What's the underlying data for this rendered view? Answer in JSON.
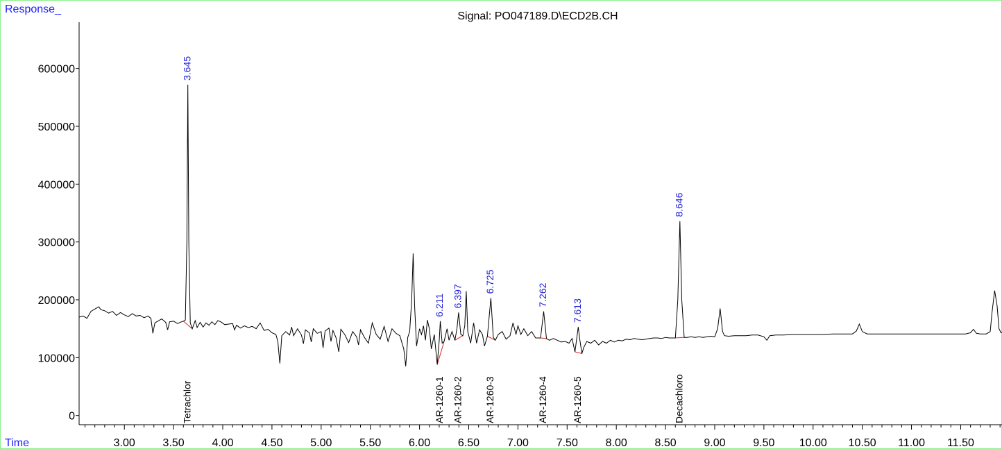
{
  "chart_data": {
    "type": "line",
    "title": "Signal: PO047189.D\\ECD2B.CH",
    "ylabel": "Response_",
    "xlabel": "Time",
    "xlim": [
      2.54,
      11.92
    ],
    "ylim": [
      -16000,
      680000
    ],
    "x_ticks": [
      "3.00",
      "3.50",
      "4.00",
      "4.50",
      "5.00",
      "5.50",
      "6.00",
      "6.50",
      "7.00",
      "7.50",
      "8.00",
      "8.50",
      "9.00",
      "9.50",
      "10.00",
      "10.50",
      "11.00",
      "11.50"
    ],
    "y_ticks": [
      "0",
      "100000",
      "200000",
      "300000",
      "400000",
      "500000",
      "600000"
    ],
    "colors": {
      "trace": "#000000",
      "peak_label": "#2323d9",
      "baseline": "#e02020",
      "axis_title": "#1a1aff",
      "frame": "#8cf08c"
    },
    "peaks": [
      {
        "rt": "3.645",
        "x": 3.645,
        "apex": 572000,
        "compound": "Tetrachlor",
        "bl_start": [
          3.6,
          163000
        ],
        "bl_end": [
          3.69,
          150000
        ]
      },
      {
        "rt": "6.211",
        "x": 6.211,
        "apex": 163000,
        "compound": "AR-1260-1",
        "bl_start": [
          6.18,
          88000
        ],
        "bl_end": [
          6.25,
          128000
        ]
      },
      {
        "rt": "6.397",
        "x": 6.397,
        "apex": 178000,
        "compound": "AR-1260-2",
        "bl_start": [
          6.36,
          130000
        ],
        "bl_end": [
          6.44,
          138000
        ]
      },
      {
        "rt": "6.725",
        "x": 6.725,
        "apex": 203000,
        "compound": "AR-1260-3",
        "bl_start": [
          6.69,
          137000
        ],
        "bl_end": [
          6.77,
          130000
        ]
      },
      {
        "rt": "7.262",
        "x": 7.262,
        "apex": 180000,
        "compound": "AR-1260-4",
        "bl_start": [
          7.23,
          134000
        ],
        "bl_end": [
          7.29,
          133000
        ]
      },
      {
        "rt": "7.613",
        "x": 7.613,
        "apex": 153000,
        "compound": "AR-1260-5",
        "bl_start": [
          7.58,
          110000
        ],
        "bl_end": [
          7.65,
          107000
        ]
      },
      {
        "rt": "8.646",
        "x": 8.646,
        "apex": 336000,
        "compound": "Decachloro",
        "bl_start": [
          8.6,
          134000
        ],
        "bl_end": [
          8.69,
          135000
        ]
      }
    ],
    "trace": [
      [
        2.54,
        170000
      ],
      [
        2.58,
        172000
      ],
      [
        2.62,
        168000
      ],
      [
        2.66,
        180000
      ],
      [
        2.7,
        184000
      ],
      [
        2.72,
        186000
      ],
      [
        2.74,
        188000
      ],
      [
        2.76,
        183000
      ],
      [
        2.8,
        181000
      ],
      [
        2.84,
        177000
      ],
      [
        2.88,
        180000
      ],
      [
        2.92,
        173000
      ],
      [
        2.96,
        178000
      ],
      [
        3.0,
        174000
      ],
      [
        3.04,
        171000
      ],
      [
        3.08,
        176000
      ],
      [
        3.12,
        172000
      ],
      [
        3.16,
        173000
      ],
      [
        3.2,
        169000
      ],
      [
        3.24,
        172000
      ],
      [
        3.27,
        168000
      ],
      [
        3.29,
        142000
      ],
      [
        3.31,
        160000
      ],
      [
        3.34,
        163000
      ],
      [
        3.38,
        167000
      ],
      [
        3.42,
        161000
      ],
      [
        3.44,
        148000
      ],
      [
        3.46,
        162000
      ],
      [
        3.5,
        163000
      ],
      [
        3.54,
        159000
      ],
      [
        3.58,
        162000
      ],
      [
        3.6,
        163000
      ],
      [
        3.62,
        165000
      ],
      [
        3.635,
        300000
      ],
      [
        3.645,
        572000
      ],
      [
        3.655,
        300000
      ],
      [
        3.67,
        160000
      ],
      [
        3.69,
        150000
      ],
      [
        3.72,
        164000
      ],
      [
        3.74,
        152000
      ],
      [
        3.77,
        161000
      ],
      [
        3.8,
        153000
      ],
      [
        3.83,
        160000
      ],
      [
        3.86,
        156000
      ],
      [
        3.89,
        162000
      ],
      [
        3.92,
        157000
      ],
      [
        3.95,
        164000
      ],
      [
        3.98,
        162000
      ],
      [
        4.02,
        157000
      ],
      [
        4.06,
        158000
      ],
      [
        4.1,
        159000
      ],
      [
        4.12,
        148000
      ],
      [
        4.14,
        156000
      ],
      [
        4.18,
        151000
      ],
      [
        4.22,
        155000
      ],
      [
        4.26,
        152000
      ],
      [
        4.3,
        154000
      ],
      [
        4.34,
        150000
      ],
      [
        4.38,
        160000
      ],
      [
        4.42,
        147000
      ],
      [
        4.46,
        149000
      ],
      [
        4.5,
        143000
      ],
      [
        4.54,
        140000
      ],
      [
        4.56,
        128000
      ],
      [
        4.58,
        90000
      ],
      [
        4.6,
        138000
      ],
      [
        4.64,
        145000
      ],
      [
        4.68,
        139000
      ],
      [
        4.7,
        153000
      ],
      [
        4.72,
        138000
      ],
      [
        4.76,
        150000
      ],
      [
        4.8,
        139000
      ],
      [
        4.82,
        124000
      ],
      [
        4.84,
        148000
      ],
      [
        4.88,
        143000
      ],
      [
        4.9,
        127000
      ],
      [
        4.92,
        150000
      ],
      [
        4.96,
        142000
      ],
      [
        5.0,
        145000
      ],
      [
        5.02,
        117000
      ],
      [
        5.04,
        146000
      ],
      [
        5.08,
        151000
      ],
      [
        5.1,
        128000
      ],
      [
        5.12,
        147000
      ],
      [
        5.15,
        135000
      ],
      [
        5.18,
        110000
      ],
      [
        5.2,
        149000
      ],
      [
        5.24,
        140000
      ],
      [
        5.28,
        126000
      ],
      [
        5.32,
        145000
      ],
      [
        5.36,
        136000
      ],
      [
        5.38,
        122000
      ],
      [
        5.4,
        148000
      ],
      [
        5.44,
        135000
      ],
      [
        5.48,
        125000
      ],
      [
        5.52,
        160000
      ],
      [
        5.56,
        140000
      ],
      [
        5.6,
        132000
      ],
      [
        5.64,
        154000
      ],
      [
        5.68,
        128000
      ],
      [
        5.72,
        150000
      ],
      [
        5.76,
        142000
      ],
      [
        5.8,
        138000
      ],
      [
        5.84,
        115000
      ],
      [
        5.86,
        85000
      ],
      [
        5.88,
        135000
      ],
      [
        5.9,
        145000
      ],
      [
        5.92,
        200000
      ],
      [
        5.935,
        280000
      ],
      [
        5.95,
        190000
      ],
      [
        5.97,
        120000
      ],
      [
        6.0,
        150000
      ],
      [
        6.02,
        140000
      ],
      [
        6.04,
        155000
      ],
      [
        6.06,
        130000
      ],
      [
        6.08,
        165000
      ],
      [
        6.1,
        150000
      ],
      [
        6.12,
        115000
      ],
      [
        6.15,
        140000
      ],
      [
        6.18,
        88000
      ],
      [
        6.2,
        130000
      ],
      [
        6.211,
        163000
      ],
      [
        6.23,
        125000
      ],
      [
        6.25,
        128000
      ],
      [
        6.28,
        150000
      ],
      [
        6.3,
        130000
      ],
      [
        6.33,
        145000
      ],
      [
        6.36,
        130000
      ],
      [
        6.38,
        150000
      ],
      [
        6.397,
        178000
      ],
      [
        6.42,
        140000
      ],
      [
        6.44,
        138000
      ],
      [
        6.46,
        155000
      ],
      [
        6.475,
        215000
      ],
      [
        6.49,
        145000
      ],
      [
        6.52,
        125000
      ],
      [
        6.55,
        160000
      ],
      [
        6.58,
        125000
      ],
      [
        6.61,
        148000
      ],
      [
        6.64,
        140000
      ],
      [
        6.66,
        120000
      ],
      [
        6.69,
        137000
      ],
      [
        6.725,
        203000
      ],
      [
        6.75,
        135000
      ],
      [
        6.77,
        130000
      ],
      [
        6.8,
        140000
      ],
      [
        6.84,
        145000
      ],
      [
        6.88,
        132000
      ],
      [
        6.92,
        138000
      ],
      [
        6.95,
        160000
      ],
      [
        6.98,
        140000
      ],
      [
        7.0,
        155000
      ],
      [
        7.03,
        140000
      ],
      [
        7.06,
        150000
      ],
      [
        7.1,
        138000
      ],
      [
        7.14,
        145000
      ],
      [
        7.18,
        134000
      ],
      [
        7.23,
        134000
      ],
      [
        7.262,
        180000
      ],
      [
        7.29,
        133000
      ],
      [
        7.32,
        130000
      ],
      [
        7.36,
        133000
      ],
      [
        7.4,
        130000
      ],
      [
        7.44,
        127000
      ],
      [
        7.48,
        128000
      ],
      [
        7.52,
        125000
      ],
      [
        7.55,
        133000
      ],
      [
        7.58,
        110000
      ],
      [
        7.613,
        153000
      ],
      [
        7.63,
        130000
      ],
      [
        7.65,
        107000
      ],
      [
        7.67,
        118000
      ],
      [
        7.7,
        128000
      ],
      [
        7.74,
        125000
      ],
      [
        7.78,
        130000
      ],
      [
        7.82,
        122000
      ],
      [
        7.86,
        128000
      ],
      [
        7.9,
        125000
      ],
      [
        7.94,
        130000
      ],
      [
        7.98,
        127000
      ],
      [
        8.02,
        130000
      ],
      [
        8.06,
        129000
      ],
      [
        8.1,
        132000
      ],
      [
        8.14,
        131000
      ],
      [
        8.18,
        133000
      ],
      [
        8.22,
        132000
      ],
      [
        8.26,
        131000
      ],
      [
        8.3,
        132000
      ],
      [
        8.34,
        133000
      ],
      [
        8.38,
        134000
      ],
      [
        8.42,
        134000
      ],
      [
        8.46,
        133000
      ],
      [
        8.5,
        135000
      ],
      [
        8.54,
        134000
      ],
      [
        8.58,
        134000
      ],
      [
        8.6,
        134000
      ],
      [
        8.625,
        200000
      ],
      [
        8.646,
        336000
      ],
      [
        8.665,
        200000
      ],
      [
        8.69,
        135000
      ],
      [
        8.72,
        135000
      ],
      [
        8.76,
        136000
      ],
      [
        8.8,
        135000
      ],
      [
        8.84,
        136000
      ],
      [
        8.88,
        135000
      ],
      [
        8.92,
        136000
      ],
      [
        8.96,
        137000
      ],
      [
        9.0,
        136000
      ],
      [
        9.03,
        150000
      ],
      [
        9.055,
        185000
      ],
      [
        9.08,
        145000
      ],
      [
        9.1,
        138000
      ],
      [
        9.14,
        137000
      ],
      [
        9.2,
        138000
      ],
      [
        9.26,
        138000
      ],
      [
        9.32,
        138000
      ],
      [
        9.38,
        139000
      ],
      [
        9.44,
        139000
      ],
      [
        9.5,
        136000
      ],
      [
        9.53,
        130000
      ],
      [
        9.56,
        138000
      ],
      [
        9.62,
        139000
      ],
      [
        9.7,
        139000
      ],
      [
        9.8,
        140000
      ],
      [
        9.9,
        140000
      ],
      [
        10.0,
        140000
      ],
      [
        10.1,
        140000
      ],
      [
        10.2,
        141000
      ],
      [
        10.3,
        141000
      ],
      [
        10.4,
        141000
      ],
      [
        10.44,
        146000
      ],
      [
        10.47,
        158000
      ],
      [
        10.5,
        145000
      ],
      [
        10.55,
        141000
      ],
      [
        10.65,
        141000
      ],
      [
        10.75,
        141000
      ],
      [
        10.85,
        141000
      ],
      [
        10.95,
        141000
      ],
      [
        11.05,
        141000
      ],
      [
        11.15,
        141000
      ],
      [
        11.25,
        141000
      ],
      [
        11.35,
        141000
      ],
      [
        11.45,
        141000
      ],
      [
        11.55,
        141000
      ],
      [
        11.6,
        143000
      ],
      [
        11.63,
        149000
      ],
      [
        11.66,
        142000
      ],
      [
        11.7,
        141000
      ],
      [
        11.76,
        141000
      ],
      [
        11.8,
        145000
      ],
      [
        11.82,
        180000
      ],
      [
        11.845,
        216000
      ],
      [
        11.87,
        190000
      ],
      [
        11.89,
        150000
      ],
      [
        11.91,
        143000
      ],
      [
        11.92,
        144000
      ]
    ]
  }
}
